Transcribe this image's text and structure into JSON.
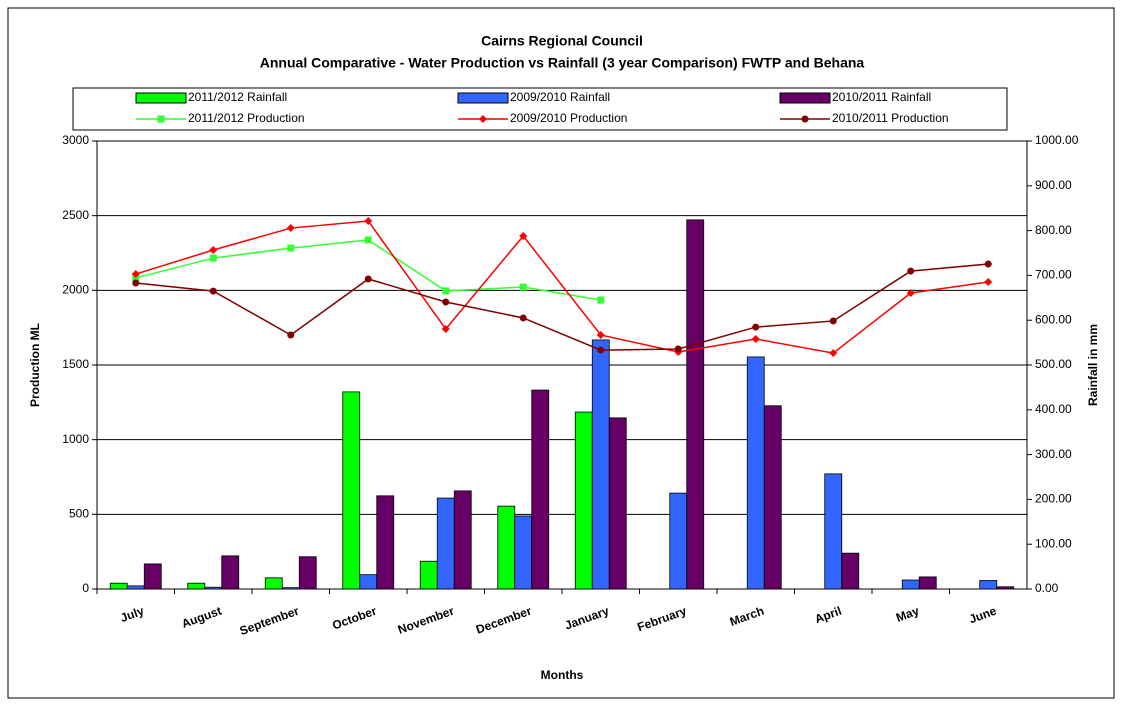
{
  "chart_data": {
    "type": "bar",
    "title": "Cairns Regional Council",
    "subtitle": "Annual Comparative - Water Production vs Rainfall (3 year Comparison) FWTP and Behana",
    "x_label": "Months",
    "y_label": "Production ML",
    "y2_label": "Rainfall in mm",
    "categories": [
      "July",
      "August",
      "September",
      "October",
      "November",
      "December",
      "January",
      "February",
      "March",
      "April",
      "May",
      "June"
    ],
    "ylim": [
      0,
      3000
    ],
    "yticks": [
      0,
      500,
      1000,
      1500,
      2000,
      2500,
      3000
    ],
    "y2lim": [
      0,
      1000
    ],
    "y2ticks": [
      {
        "value": 0,
        "label": "0.00"
      },
      {
        "value": 100,
        "label": "100.00"
      },
      {
        "value": 200,
        "label": "200.00"
      },
      {
        "value": 300,
        "label": "300.00"
      },
      {
        "value": 400,
        "label": "400.00"
      },
      {
        "value": 500,
        "label": "500.00"
      },
      {
        "value": 600,
        "label": "600.00"
      },
      {
        "value": 700,
        "label": "700.00"
      },
      {
        "value": 800,
        "label": "800.00"
      },
      {
        "value": 900,
        "label": "900.00"
      },
      {
        "value": 1000,
        "label": "1000.00"
      }
    ],
    "grid": true,
    "series": [
      {
        "name": "2011/2012 Rainfall",
        "type": "bar",
        "axis": "y2",
        "color": "#00ff00",
        "values": [
          13,
          13,
          25,
          440,
          62,
          185,
          395,
          null,
          null,
          null,
          null,
          null
        ]
      },
      {
        "name": "2009/2010 Rainfall",
        "type": "bar",
        "axis": "y2",
        "color": "#3366ff",
        "values": [
          7,
          4,
          3,
          32,
          203,
          163,
          556,
          214,
          518,
          257,
          20,
          19
        ]
      },
      {
        "name": "2010/2011 Rainfall",
        "type": "bar",
        "axis": "y2",
        "color": "#660066",
        "values": [
          56,
          74,
          72,
          208,
          219,
          444,
          382,
          824,
          409,
          80,
          27,
          5
        ]
      },
      {
        "name": "2011/2012 Production",
        "type": "line",
        "marker": "square",
        "color": "#33ff33",
        "values": [
          2083,
          2216,
          2283,
          2337,
          1996,
          2022,
          1935,
          null,
          null,
          null,
          null,
          null
        ]
      },
      {
        "name": "2009/2010 Production",
        "type": "line",
        "marker": "diamond",
        "color": "#ff0000",
        "values": [
          2109,
          2270,
          2417,
          2464,
          1741,
          2364,
          1701,
          1587,
          1674,
          1580,
          1982,
          2056
        ]
      },
      {
        "name": "2010/2011 Production",
        "type": "line",
        "marker": "circle",
        "color": "#800000",
        "values": [
          2049,
          1995,
          1701,
          2076,
          1922,
          1815,
          1600,
          1607,
          1754,
          1795,
          2129,
          2176
        ]
      }
    ]
  }
}
